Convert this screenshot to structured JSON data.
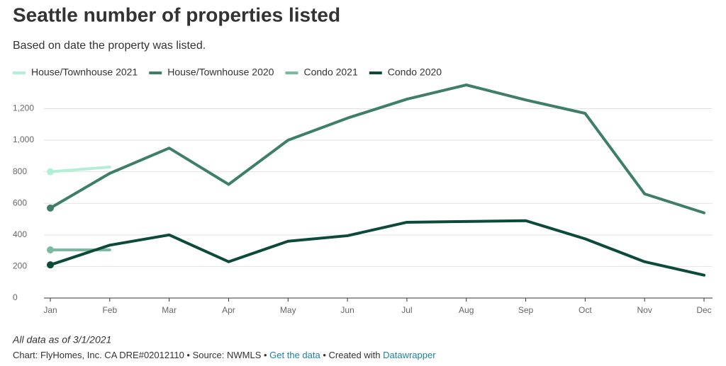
{
  "chart_data": {
    "type": "line",
    "title": "Seattle number of properties listed",
    "subtitle": "Based on date the property was listed.",
    "categories": [
      "Jan",
      "Feb",
      "Mar",
      "Apr",
      "May",
      "Jun",
      "Jul",
      "Aug",
      "Sep",
      "Oct",
      "Nov",
      "Dec"
    ],
    "series": [
      {
        "name": "House/Townhouse 2021",
        "color": "#b2efd6",
        "values": [
          800,
          830,
          null,
          null,
          null,
          null,
          null,
          null,
          null,
          null,
          null,
          null
        ]
      },
      {
        "name": "House/Townhouse 2020",
        "color": "#3f7f6a",
        "values": [
          570,
          790,
          950,
          720,
          1000,
          1140,
          1260,
          1350,
          1255,
          1170,
          660,
          540
        ]
      },
      {
        "name": "Condo 2021",
        "color": "#7bb9a1",
        "values": [
          305,
          305,
          null,
          null,
          null,
          null,
          null,
          null,
          null,
          null,
          null,
          null
        ]
      },
      {
        "name": "Condo 2020",
        "color": "#0c4a3a",
        "values": [
          210,
          335,
          400,
          230,
          360,
          395,
          480,
          485,
          490,
          375,
          230,
          145
        ]
      }
    ],
    "ylim": [
      0,
      1350
    ],
    "yticks": [
      0,
      200,
      400,
      600,
      800,
      {
        "value": 1000,
        "label": "1,000"
      },
      {
        "value": 1200,
        "label": "1,200"
      }
    ],
    "grid": true,
    "notes": "All data as of 3/1/2021",
    "credits": [
      "Chart: FlyHomes, Inc. CA DRE#02012110 • Source: NWMLS • ",
      "Get the data",
      " • Created with ",
      "Datawrapper"
    ]
  }
}
